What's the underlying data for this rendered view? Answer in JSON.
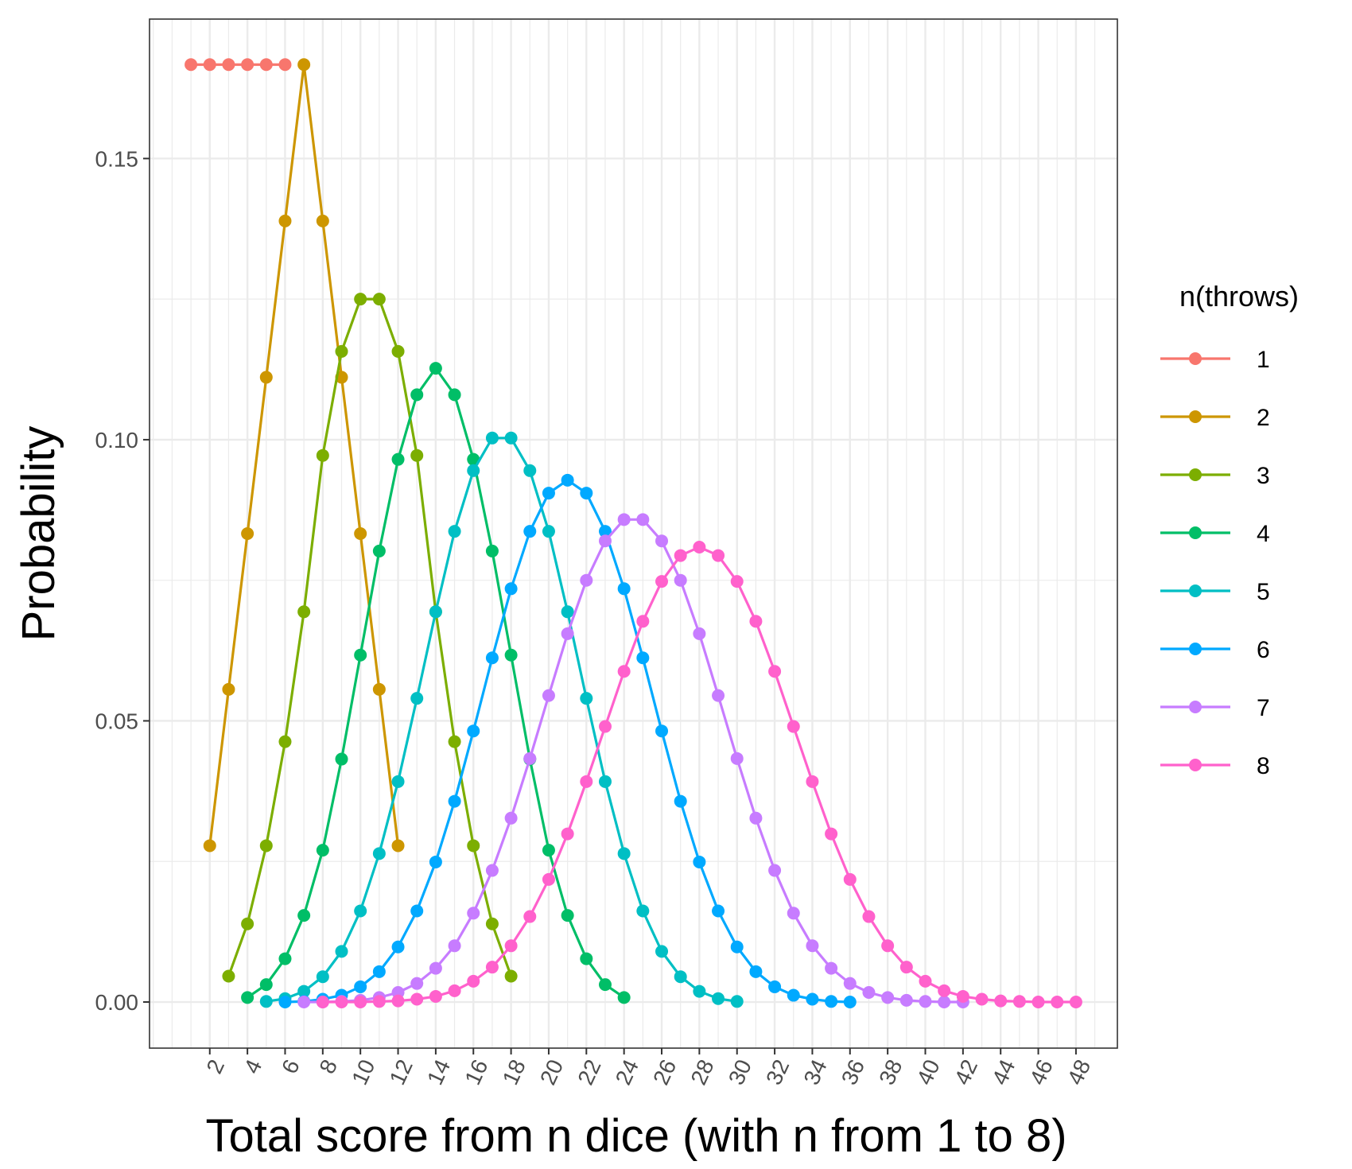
{
  "chart_data": {
    "type": "line",
    "xlabel": "Total score from n dice (with n from 1 to 8)",
    "ylabel": "Probability",
    "xlim": [
      -1.2,
      50.2
    ],
    "ylim": [
      -0.0082,
      0.1748
    ],
    "x_ticks": [
      2,
      4,
      6,
      8,
      10,
      12,
      14,
      16,
      18,
      20,
      22,
      24,
      26,
      28,
      30,
      32,
      34,
      36,
      38,
      40,
      42,
      44,
      46,
      48
    ],
    "y_ticks": [
      0.0,
      0.05,
      0.1,
      0.15
    ],
    "y_tick_labels": [
      "0.00",
      "0.05",
      "0.10",
      "0.15"
    ],
    "grid": true,
    "legend": {
      "title": "n(throws)",
      "placement": "right"
    },
    "series": [
      {
        "name": "1",
        "color": "#F8766D",
        "x_start": 1,
        "values": [
          0.1667,
          0.1667,
          0.1667,
          0.1667,
          0.1667,
          0.1667
        ]
      },
      {
        "name": "2",
        "color": "#CD9600",
        "x_start": 2,
        "values": [
          0.0278,
          0.0556,
          0.0833,
          0.1111,
          0.1389,
          0.1667,
          0.1389,
          0.1111,
          0.0833,
          0.0556,
          0.0278
        ]
      },
      {
        "name": "3",
        "color": "#7CAE00",
        "x_start": 3,
        "values": [
          0.0046,
          0.0139,
          0.0278,
          0.0463,
          0.0694,
          0.0972,
          0.1157,
          0.125,
          0.125,
          0.1157,
          0.0972,
          0.0694,
          0.0463,
          0.0278,
          0.0139,
          0.0046
        ]
      },
      {
        "name": "4",
        "color": "#00BE67",
        "x_start": 4,
        "values": [
          0.0008,
          0.0031,
          0.0077,
          0.0154,
          0.027,
          0.0432,
          0.0617,
          0.0802,
          0.0965,
          0.108,
          0.1127,
          0.108,
          0.0965,
          0.0802,
          0.0617,
          0.0432,
          0.027,
          0.0154,
          0.0077,
          0.0031,
          0.0008
        ]
      },
      {
        "name": "5",
        "color": "#00BFC4",
        "x_start": 5,
        "values": [
          0.0001,
          0.0006,
          0.0019,
          0.0045,
          0.009,
          0.0162,
          0.0264,
          0.0392,
          0.054,
          0.0694,
          0.0837,
          0.0945,
          0.1003,
          0.1003,
          0.0945,
          0.0837,
          0.0694,
          0.054,
          0.0392,
          0.0264,
          0.0162,
          0.009,
          0.0045,
          0.0019,
          0.0006,
          0.0001
        ]
      },
      {
        "name": "6",
        "color": "#00A9FF",
        "x_start": 6,
        "values": [
          0.0,
          0.0001,
          0.0005,
          0.0012,
          0.0027,
          0.0054,
          0.0098,
          0.0162,
          0.0249,
          0.0357,
          0.0482,
          0.0612,
          0.0735,
          0.0837,
          0.0905,
          0.0928,
          0.0905,
          0.0837,
          0.0735,
          0.0612,
          0.0482,
          0.0357,
          0.0249,
          0.0162,
          0.0098,
          0.0054,
          0.0027,
          0.0012,
          0.0005,
          0.0001,
          0.0
        ]
      },
      {
        "name": "7",
        "color": "#C77CFF",
        "x_start": 7,
        "values": [
          0.0,
          0.0,
          0.0001,
          0.0003,
          0.0008,
          0.0017,
          0.0033,
          0.006,
          0.01,
          0.0158,
          0.0234,
          0.0327,
          0.0433,
          0.0545,
          0.0655,
          0.075,
          0.082,
          0.0858,
          0.0858,
          0.082,
          0.075,
          0.0655,
          0.0545,
          0.0433,
          0.0327,
          0.0234,
          0.0158,
          0.01,
          0.006,
          0.0033,
          0.0017,
          0.0008,
          0.0003,
          0.0001,
          0.0,
          0.0
        ]
      },
      {
        "name": "8",
        "color": "#FF61CC",
        "x_start": 8,
        "values": [
          0.0,
          0.0,
          0.0,
          0.0001,
          0.0002,
          0.0005,
          0.001,
          0.002,
          0.0037,
          0.0062,
          0.01,
          0.0152,
          0.0218,
          0.0299,
          0.0392,
          0.049,
          0.0588,
          0.0677,
          0.0748,
          0.0794,
          0.0809,
          0.0794,
          0.0748,
          0.0677,
          0.0588,
          0.049,
          0.0392,
          0.0299,
          0.0218,
          0.0152,
          0.01,
          0.0062,
          0.0037,
          0.002,
          0.001,
          0.0005,
          0.0002,
          0.0001,
          0.0,
          0.0,
          0.0
        ]
      }
    ]
  }
}
